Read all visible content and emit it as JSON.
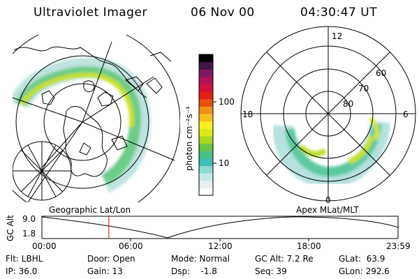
{
  "header": {
    "title": "Ultraviolet Imager",
    "date": "06 Nov 00",
    "time": "04:30:47 UT"
  },
  "colorbar": {
    "label": "photon cm⁻²s⁻¹",
    "ticks": [
      "100",
      "10"
    ],
    "colors": [
      "#ffffff",
      "#e6eeee",
      "#c8e8e8",
      "#8ed8d0",
      "#3cc0b8",
      "#48c088",
      "#68c840",
      "#a8d820",
      "#d8e818",
      "#f8f020",
      "#f8c020",
      "#f09018",
      "#e85010",
      "#e02018",
      "#d01040",
      "#b01058",
      "#801860",
      "#401848",
      "#000000"
    ]
  },
  "left_panel": {
    "label": "Geographic Lat/Lon"
  },
  "right_panel": {
    "label": "Apex MLat/MLT",
    "mlt_labels": {
      "top": "12",
      "left": "18",
      "right": "6",
      "bottom": "0"
    },
    "mlat_labels": [
      "60",
      "70",
      "80"
    ]
  },
  "alt_plot": {
    "ylabel": "GC Alt",
    "ymax": "9.0",
    "ymin": "1.8",
    "xticks": [
      "00:00",
      "06:00",
      "12:00",
      "18:00",
      "23:59"
    ],
    "cursor_time_hours": 4.51
  },
  "info": {
    "row1": [
      "Flt: LBHL",
      "Door: Open",
      "Mode: Normal",
      "GC Alt: 7.2 Re",
      "GLat:  63.9"
    ],
    "row2": [
      "IP: 36.0",
      "Gain: 13",
      "Dsp:    -1.8",
      "Seq: 39",
      "GLon: 292.6"
    ]
  }
}
